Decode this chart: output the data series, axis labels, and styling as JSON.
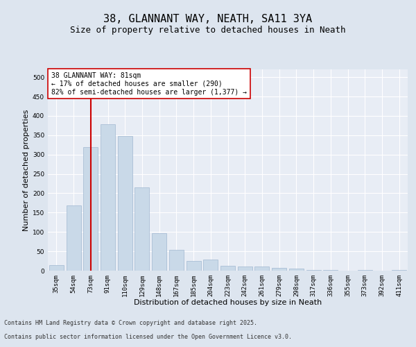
{
  "title1": "38, GLANNANT WAY, NEATH, SA11 3YA",
  "title2": "Size of property relative to detached houses in Neath",
  "xlabel": "Distribution of detached houses by size in Neath",
  "ylabel": "Number of detached properties",
  "categories": [
    "35sqm",
    "54sqm",
    "73sqm",
    "91sqm",
    "110sqm",
    "129sqm",
    "148sqm",
    "167sqm",
    "185sqm",
    "204sqm",
    "223sqm",
    "242sqm",
    "261sqm",
    "279sqm",
    "298sqm",
    "317sqm",
    "336sqm",
    "355sqm",
    "373sqm",
    "392sqm",
    "411sqm"
  ],
  "values": [
    15,
    168,
    320,
    378,
    348,
    215,
    97,
    53,
    25,
    28,
    13,
    11,
    10,
    7,
    5,
    2,
    1,
    0,
    1,
    0,
    1
  ],
  "bar_color": "#c9d9e8",
  "bar_edge_color": "#a0b8d0",
  "red_line_index": 2,
  "red_line_color": "#cc0000",
  "annotation_line1": "38 GLANNANT WAY: 81sqm",
  "annotation_line2": "← 17% of detached houses are smaller (290)",
  "annotation_line3": "82% of semi-detached houses are larger (1,377) →",
  "annotation_box_color": "#ffffff",
  "annotation_box_edge": "#cc0000",
  "ylim": [
    0,
    520
  ],
  "yticks": [
    0,
    50,
    100,
    150,
    200,
    250,
    300,
    350,
    400,
    450,
    500
  ],
  "background_color": "#dde5ef",
  "plot_bg_color": "#e8edf5",
  "grid_color": "#ffffff",
  "footer_line1": "Contains HM Land Registry data © Crown copyright and database right 2025.",
  "footer_line2": "Contains public sector information licensed under the Open Government Licence v3.0.",
  "title1_fontsize": 11,
  "title2_fontsize": 9,
  "annotation_fontsize": 7,
  "tick_fontsize": 6.5,
  "xlabel_fontsize": 8,
  "ylabel_fontsize": 8,
  "footer_fontsize": 6
}
